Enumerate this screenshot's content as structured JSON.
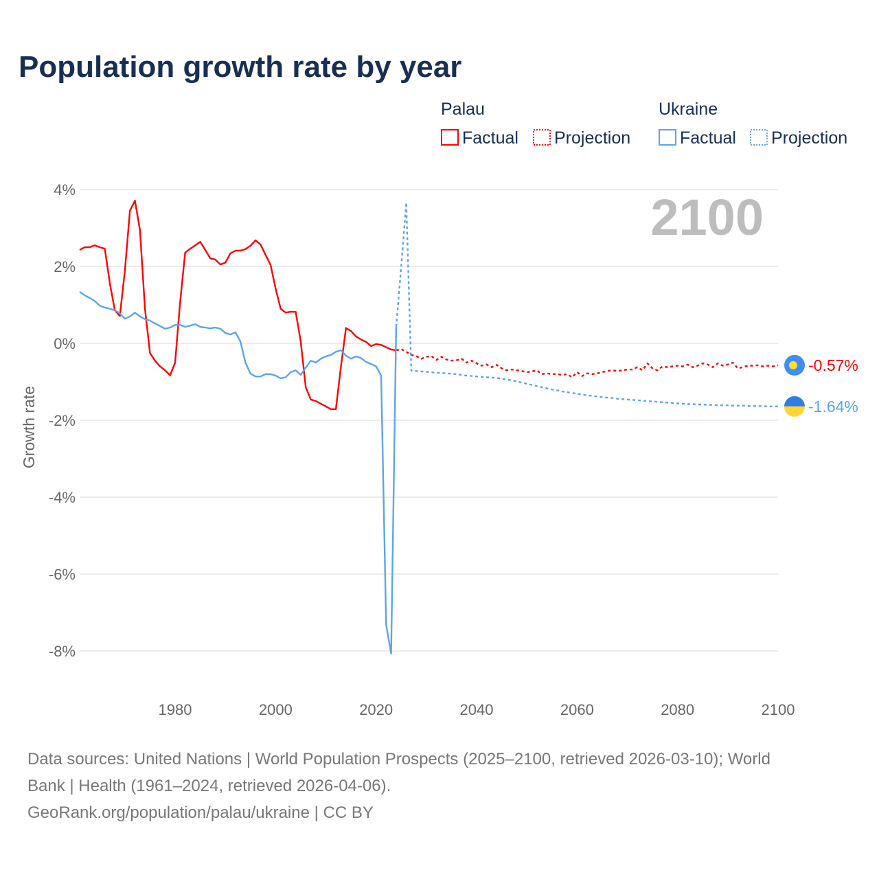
{
  "chart_data": {
    "type": "line",
    "title": "Population growth rate by year",
    "ylabel": "Growth rate",
    "xlabel": "",
    "xlim": [
      1961,
      2100
    ],
    "ylim": [
      -8,
      4
    ],
    "x_ticks": [
      "1980",
      "2000",
      "2020",
      "2040",
      "2060",
      "2080",
      "2100"
    ],
    "x_tick_values": [
      1980,
      2000,
      2020,
      2040,
      2060,
      2080,
      2100
    ],
    "y_ticks": [
      "4%",
      "2%",
      "0%",
      "-2%",
      "-4%",
      "-6%",
      "-8%"
    ],
    "y_tick_values": [
      4,
      2,
      0,
      -2,
      -4,
      -6,
      -8
    ],
    "grid": true,
    "legend_placement": "top-right",
    "current_year_label": "2100",
    "legend": {
      "groups": [
        {
          "name": "Palau",
          "factual": "Factual",
          "projection": "Projection",
          "color": "#ff0000"
        },
        {
          "name": "Ukraine",
          "factual": "Factual",
          "projection": "Projection",
          "color": "#5aa5ec"
        }
      ]
    },
    "series": [
      {
        "name": "Palau Factual",
        "country": "Palau",
        "color": "#ff0000",
        "style": "solid",
        "start_year": 1961,
        "values": [
          2.43,
          2.5,
          2.5,
          2.55,
          2.5,
          2.46,
          1.57,
          0.86,
          0.71,
          1.88,
          3.45,
          3.71,
          2.95,
          0.9,
          -0.25,
          -0.45,
          -0.6,
          -0.7,
          -0.83,
          -0.5,
          1.07,
          2.36,
          2.46,
          2.55,
          2.64,
          2.43,
          2.21,
          2.18,
          2.05,
          2.1,
          2.34,
          2.41,
          2.41,
          2.45,
          2.54,
          2.68,
          2.57,
          2.3,
          2.04,
          1.43,
          0.9,
          0.8,
          0.82,
          0.82,
          0.05,
          -1.14,
          -1.46,
          -1.5,
          -1.57,
          -1.64,
          -1.71,
          -1.71,
          -0.6,
          0.4,
          0.32,
          0.18,
          0.1,
          0.04,
          -0.07,
          -0.02,
          -0.04,
          -0.1,
          -0.16,
          -0.18
        ]
      },
      {
        "name": "Palau Projection",
        "country": "Palau",
        "color": "#ff0000",
        "style": "dotted",
        "start_year": 2024,
        "values": [
          -0.18,
          -0.15,
          -0.22,
          -0.3,
          -0.33,
          -0.4,
          -0.35,
          -0.33,
          -0.43,
          -0.35,
          -0.42,
          -0.45,
          -0.44,
          -0.4,
          -0.5,
          -0.45,
          -0.52,
          -0.58,
          -0.55,
          -0.62,
          -0.56,
          -0.65,
          -0.7,
          -0.68,
          -0.7,
          -0.72,
          -0.75,
          -0.73,
          -0.7,
          -0.8,
          -0.78,
          -0.8,
          -0.8,
          -0.82,
          -0.8,
          -0.88,
          -0.75,
          -0.85,
          -0.78,
          -0.8,
          -0.78,
          -0.75,
          -0.72,
          -0.7,
          -0.72,
          -0.7,
          -0.68,
          -0.68,
          -0.62,
          -0.7,
          -0.52,
          -0.65,
          -0.7,
          -0.6,
          -0.62,
          -0.6,
          -0.58,
          -0.6,
          -0.55,
          -0.62,
          -0.58,
          -0.52,
          -0.55,
          -0.62,
          -0.52,
          -0.58,
          -0.55,
          -0.5,
          -0.65,
          -0.62,
          -0.58,
          -0.58,
          -0.57,
          -0.6,
          -0.58,
          -0.6,
          -0.57
        ]
      },
      {
        "name": "Ukraine Factual",
        "country": "Ukraine",
        "color": "#5aa5ec",
        "style": "solid",
        "start_year": 1961,
        "values": [
          1.34,
          1.25,
          1.18,
          1.1,
          0.98,
          0.93,
          0.9,
          0.86,
          0.78,
          0.64,
          0.7,
          0.8,
          0.7,
          0.63,
          0.59,
          0.52,
          0.45,
          0.38,
          0.41,
          0.48,
          0.48,
          0.43,
          0.46,
          0.5,
          0.43,
          0.41,
          0.39,
          0.41,
          0.38,
          0.27,
          0.23,
          0.29,
          0.05,
          -0.5,
          -0.79,
          -0.86,
          -0.86,
          -0.8,
          -0.8,
          -0.84,
          -0.91,
          -0.88,
          -0.75,
          -0.7,
          -0.82,
          -0.63,
          -0.45,
          -0.5,
          -0.4,
          -0.34,
          -0.3,
          -0.22,
          -0.18,
          -0.32,
          -0.4,
          -0.34,
          -0.38,
          -0.48,
          -0.54,
          -0.6,
          -0.84,
          -7.32,
          -8.07,
          0.43
        ]
      },
      {
        "name": "Ukraine Projection",
        "country": "Ukraine",
        "color": "#5aa5ec",
        "style": "dotted",
        "start_year": 2024,
        "values": [
          0.43,
          2.0,
          3.66,
          -0.71,
          -0.72,
          -0.73,
          -0.74,
          -0.75,
          -0.76,
          -0.77,
          -0.78,
          -0.79,
          -0.8,
          -0.82,
          -0.84,
          -0.85,
          -0.86,
          -0.87,
          -0.88,
          -0.89,
          -0.9,
          -0.92,
          -0.94,
          -0.96,
          -0.99,
          -1.02,
          -1.05,
          -1.08,
          -1.11,
          -1.14,
          -1.17,
          -1.2,
          -1.22,
          -1.25,
          -1.27,
          -1.29,
          -1.31,
          -1.33,
          -1.35,
          -1.37,
          -1.38,
          -1.4,
          -1.41,
          -1.42,
          -1.44,
          -1.45,
          -1.46,
          -1.47,
          -1.48,
          -1.49,
          -1.5,
          -1.51,
          -1.52,
          -1.53,
          -1.54,
          -1.55,
          -1.56,
          -1.57,
          -1.58,
          -1.58,
          -1.59,
          -1.59,
          -1.6,
          -1.6,
          -1.61,
          -1.61,
          -1.61,
          -1.62,
          -1.62,
          -1.62,
          -1.63,
          -1.63,
          -1.63,
          -1.63,
          -1.64,
          -1.64,
          -1.64
        ]
      }
    ],
    "end_labels": [
      {
        "country": "Palau",
        "value": -0.57,
        "text": "-0.57%",
        "color": "#ff0000"
      },
      {
        "country": "Ukraine",
        "value": -1.64,
        "text": "-1.64%",
        "color": "#5aa5ec"
      }
    ]
  },
  "footer": {
    "line1": "Data sources: United Nations | World Population Prospects (2025–2100, retrieved 2026-03-10); World",
    "line2": "Bank | Health (1961–2024, retrieved 2026-04-06).",
    "line3": "GeoRank.org/population/palau/ukraine | CC BY"
  }
}
